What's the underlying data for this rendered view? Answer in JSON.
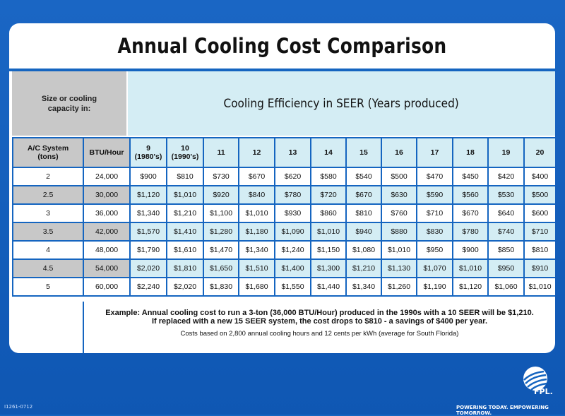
{
  "title": "Annual Cooling Cost Comparison",
  "size_header": "Size or cooling capacity in:",
  "seer_header": "Cooling Efficiency in SEER (Years produced)",
  "columns": {
    "ac_system": "A/C System (tons)",
    "btu": "BTU/Hour",
    "seer": [
      {
        "value": "9",
        "years": "(1980's)"
      },
      {
        "value": "10",
        "years": "(1990's)"
      },
      {
        "value": "11",
        "years": ""
      },
      {
        "value": "12",
        "years": ""
      },
      {
        "value": "13",
        "years": ""
      },
      {
        "value": "14",
        "years": ""
      },
      {
        "value": "15",
        "years": ""
      },
      {
        "value": "16",
        "years": ""
      },
      {
        "value": "17",
        "years": ""
      },
      {
        "value": "18",
        "years": ""
      },
      {
        "value": "19",
        "years": ""
      },
      {
        "value": "20",
        "years": ""
      }
    ]
  },
  "rows": [
    {
      "tons": "2",
      "btu": "24,000",
      "costs": [
        "$900",
        "$810",
        "$730",
        "$670",
        "$620",
        "$580",
        "$540",
        "$500",
        "$470",
        "$450",
        "$420",
        "$400"
      ]
    },
    {
      "tons": "2.5",
      "btu": "30,000",
      "costs": [
        "$1,120",
        "$1,010",
        "$920",
        "$840",
        "$780",
        "$720",
        "$670",
        "$630",
        "$590",
        "$560",
        "$530",
        "$500"
      ]
    },
    {
      "tons": "3",
      "btu": "36,000",
      "costs": [
        "$1,340",
        "$1,210",
        "$1,100",
        "$1,010",
        "$930",
        "$860",
        "$810",
        "$760",
        "$710",
        "$670",
        "$640",
        "$600"
      ]
    },
    {
      "tons": "3.5",
      "btu": "42,000",
      "costs": [
        "$1,570",
        "$1,410",
        "$1,280",
        "$1,180",
        "$1,090",
        "$1,010",
        "$940",
        "$880",
        "$830",
        "$780",
        "$740",
        "$710"
      ]
    },
    {
      "tons": "4",
      "btu": "48,000",
      "costs": [
        "$1,790",
        "$1,610",
        "$1,470",
        "$1,340",
        "$1,240",
        "$1,150",
        "$1,080",
        "$1,010",
        "$950",
        "$900",
        "$850",
        "$810"
      ]
    },
    {
      "tons": "4.5",
      "btu": "54,000",
      "costs": [
        "$2,020",
        "$1,810",
        "$1,650",
        "$1,510",
        "$1,400",
        "$1,300",
        "$1,210",
        "$1,130",
        "$1,070",
        "$1,010",
        "$950",
        "$910"
      ]
    },
    {
      "tons": "5",
      "btu": "60,000",
      "costs": [
        "$2,240",
        "$2,020",
        "$1,830",
        "$1,680",
        "$1,550",
        "$1,440",
        "$1,340",
        "$1,260",
        "$1,190",
        "$1,120",
        "$1,060",
        "$1,010"
      ]
    }
  ],
  "note": {
    "line1": "Example: Annual cooling cost to run a 3-ton (36,000 BTU/Hour) produced in the 1990s with a 10 SEER will be $1,210.",
    "line2": "If replaced with a new 15 SEER system, the cost drops to $810 - a savings of $400 per year.",
    "line3": "Costs based on 2,800 annual cooling hours  and 12 cents per kWh (average for South Florida)"
  },
  "footer": {
    "code": "I1261-0712",
    "brand": "FPL.",
    "tagline": "POWERING TODAY. EMPOWERING TOMORROW."
  },
  "colors": {
    "background": "#1565c0",
    "gray_cell": "#c8c8c8",
    "blue_cell": "#d4edf4"
  },
  "icons": {
    "logo": "fpl-logo-icon"
  }
}
